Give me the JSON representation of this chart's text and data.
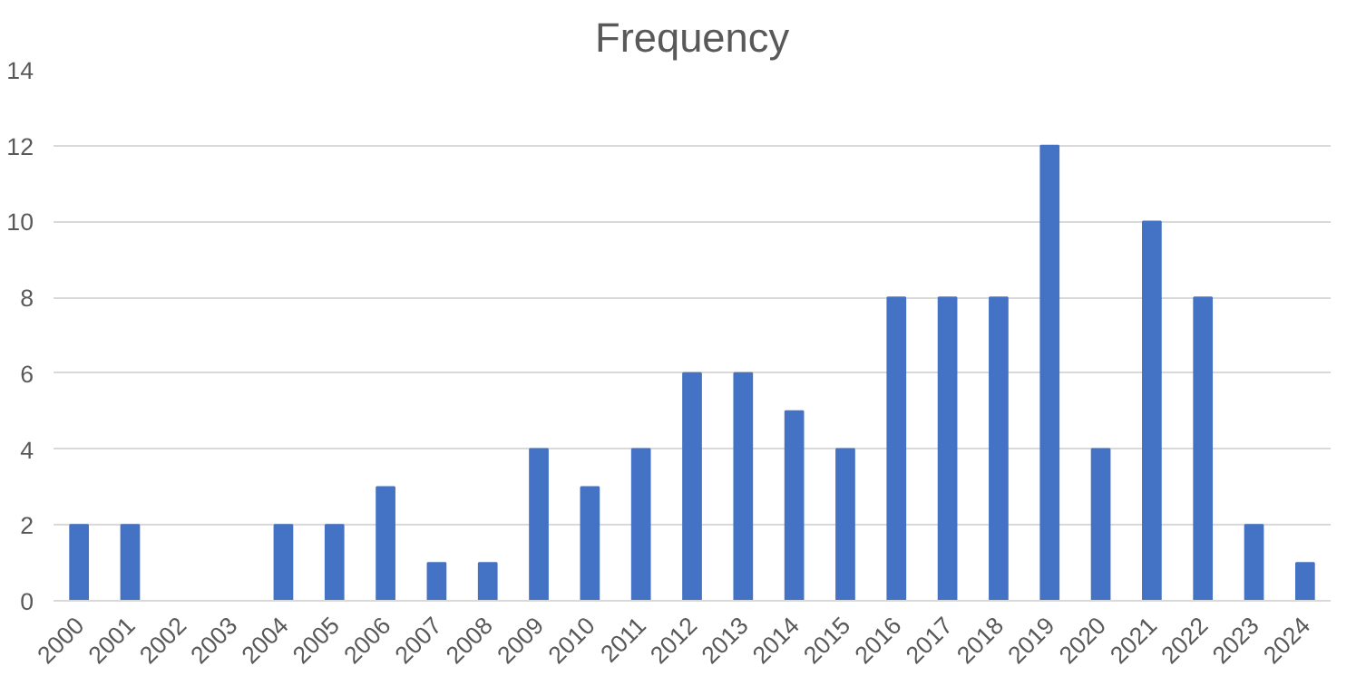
{
  "chart_data": {
    "type": "bar",
    "title": "Frequency",
    "categories": [
      "2000",
      "2001",
      "2002",
      "2003",
      "2004",
      "2005",
      "2006",
      "2007",
      "2008",
      "2009",
      "2010",
      "2011",
      "2012",
      "2013",
      "2014",
      "2015",
      "2016",
      "2017",
      "2018",
      "2019",
      "2020",
      "2021",
      "2022",
      "2023",
      "2024"
    ],
    "values": [
      2,
      2,
      0,
      0,
      2,
      2,
      3,
      1,
      1,
      4,
      3,
      4,
      6,
      6,
      5,
      4,
      8,
      8,
      8,
      12,
      4,
      10,
      8,
      2,
      1
    ],
    "color": "#4472c4",
    "ylim": [
      0,
      14
    ],
    "yticks": [
      0,
      2,
      4,
      6,
      8,
      10,
      12,
      14
    ],
    "grid": "y"
  }
}
